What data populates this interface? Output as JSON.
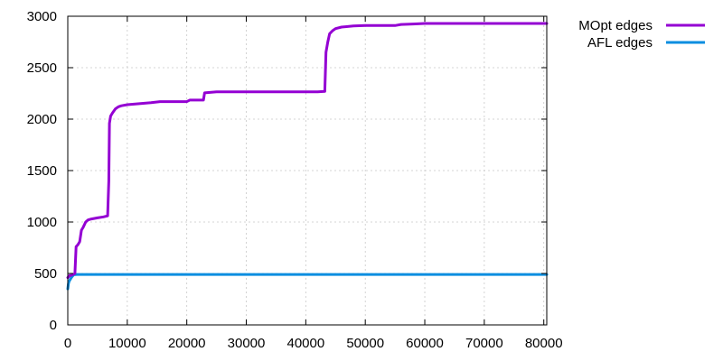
{
  "chart_data": {
    "type": "line",
    "title": "",
    "xlabel": "",
    "ylabel": "",
    "xlim": [
      0,
      80500
    ],
    "ylim": [
      0,
      3000
    ],
    "grid": true,
    "legend_position": "top-right",
    "x_ticks": [
      0,
      10000,
      20000,
      30000,
      40000,
      50000,
      60000,
      70000,
      80000
    ],
    "x_tick_labels": [
      "0",
      "10000",
      "20000",
      "30000",
      "40000",
      "50000",
      "60000",
      "70000",
      "80000"
    ],
    "y_ticks": [
      0,
      500,
      1000,
      1500,
      2000,
      2500,
      3000
    ],
    "y_tick_labels": [
      "0",
      "500",
      "1000",
      "1500",
      "2000",
      "2500",
      "3000"
    ],
    "series": [
      {
        "name": "MOpt edges",
        "color": "#9400d3",
        "x": [
          0,
          300,
          500,
          900,
          1200,
          1400,
          1700,
          2000,
          2300,
          2600,
          3000,
          3400,
          4000,
          5000,
          6000,
          6700,
          6900,
          7000,
          7200,
          7500,
          8000,
          8500,
          9000,
          10000,
          12000,
          14000,
          15500,
          18000,
          20000,
          20500,
          22800,
          23000,
          25000,
          30000,
          35000,
          40000,
          42000,
          43200,
          43400,
          43700,
          44000,
          44500,
          45000,
          46000,
          48000,
          50000,
          55000,
          56000,
          58000,
          60000,
          65000,
          70000,
          80500
        ],
        "y": [
          460,
          480,
          480,
          490,
          500,
          760,
          780,
          810,
          920,
          950,
          1000,
          1020,
          1030,
          1040,
          1050,
          1060,
          1400,
          1960,
          2030,
          2060,
          2100,
          2120,
          2130,
          2140,
          2150,
          2160,
          2170,
          2170,
          2170,
          2185,
          2185,
          2255,
          2265,
          2265,
          2265,
          2265,
          2265,
          2270,
          2650,
          2750,
          2830,
          2860,
          2880,
          2895,
          2905,
          2910,
          2910,
          2920,
          2925,
          2930,
          2930,
          2930,
          2930
        ]
      },
      {
        "name": "AFL edges",
        "color": "#0a8ee0",
        "x": [
          0,
          100,
          200,
          400,
          600,
          800,
          1000,
          1500,
          5000,
          20000,
          40000,
          60000,
          80500
        ],
        "y": [
          350,
          400,
          420,
          440,
          460,
          475,
          488,
          490,
          490,
          490,
          490,
          490,
          490
        ]
      }
    ]
  }
}
